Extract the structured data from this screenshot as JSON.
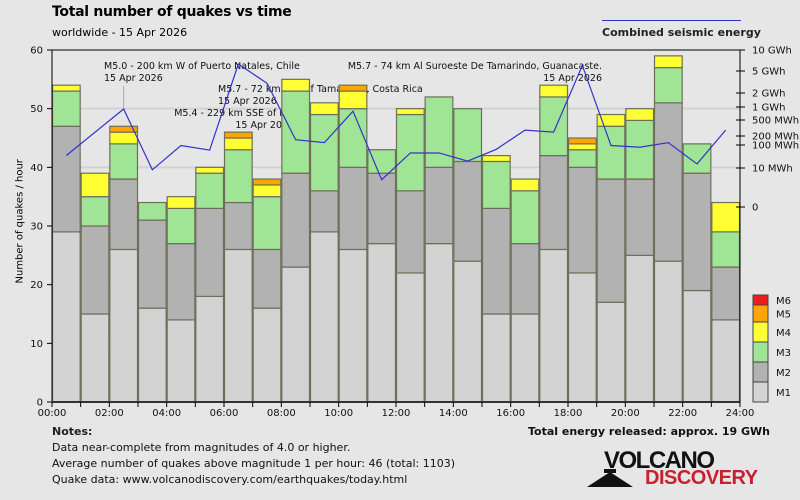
{
  "header": {
    "title": "Total number of quakes vs time",
    "subtitle": "worldwide - 15 Apr 2026",
    "energy_legend_label": "Combined seismic energy"
  },
  "notes": {
    "title": "Notes:",
    "lines": [
      "Data near-complete from magnitudes of 4.0 or higher.",
      "Average number of quakes above magnitude 1 per hour: 46 (total: 1103)",
      "Quake data: www.volcanodiscovery.com/earthquakes/today.html"
    ],
    "energy_total": "Total energy released: approx. 19 GWh"
  },
  "logo": {
    "top": "VOLCANO",
    "bottom": "DISCOVERY"
  },
  "chart_data": {
    "type": "bar",
    "stacked": true,
    "title": "Total number of quakes vs time",
    "subtitle": "worldwide - 15 Apr 2026",
    "xlabel": "",
    "ylabel": "Number of quakes / hour",
    "ylim": [
      0,
      60
    ],
    "yticks": [
      0,
      10,
      20,
      30,
      40,
      50,
      60
    ],
    "grid": true,
    "xticks": [
      "00:00",
      "02:00",
      "04:00",
      "06:00",
      "08:00",
      "10:00",
      "12:00",
      "14:00",
      "16:00",
      "18:00",
      "20:00",
      "22:00",
      "24:00"
    ],
    "categories": [
      "00",
      "01",
      "02",
      "03",
      "04",
      "05",
      "06",
      "07",
      "08",
      "09",
      "10",
      "11",
      "12",
      "13",
      "14",
      "15",
      "16",
      "17",
      "18",
      "19",
      "20",
      "21",
      "22",
      "23"
    ],
    "series": [
      {
        "name": "M1",
        "color": "#d3d3d3",
        "values": [
          29,
          15,
          26,
          16,
          14,
          18,
          26,
          16,
          23,
          29,
          26,
          27,
          22,
          27,
          24,
          15,
          15,
          26,
          22,
          17,
          25,
          24,
          19,
          14
        ]
      },
      {
        "name": "M2",
        "color": "#b2b2b2",
        "values": [
          18,
          15,
          12,
          15,
          13,
          15,
          8,
          10,
          16,
          7,
          14,
          12,
          14,
          13,
          17,
          18,
          12,
          16,
          18,
          21,
          13,
          27,
          20,
          9
        ]
      },
      {
        "name": "M3",
        "color": "#a0e495",
        "values": [
          6,
          5,
          6,
          3,
          6,
          6,
          9,
          9,
          14,
          13,
          10,
          4,
          13,
          12,
          9,
          8,
          9,
          10,
          3,
          9,
          10,
          6,
          5,
          6
        ]
      },
      {
        "name": "M4",
        "color": "#ffff33",
        "values": [
          1,
          4,
          2,
          0,
          2,
          1,
          2,
          2,
          2,
          2,
          3,
          0,
          1,
          0,
          0,
          1,
          2,
          2,
          1,
          2,
          2,
          2,
          0,
          5
        ]
      },
      {
        "name": "M5",
        "color": "#ffa500",
        "values": [
          0,
          0,
          1,
          0,
          0,
          0,
          1,
          1,
          0,
          0,
          1,
          0,
          0,
          0,
          0,
          0,
          0,
          0,
          1,
          0,
          0,
          0,
          0,
          0
        ]
      },
      {
        "name": "M6",
        "color": "#ee1c1c",
        "values": [
          0,
          0,
          0,
          0,
          0,
          0,
          0,
          0,
          0,
          0,
          0,
          0,
          0,
          0,
          0,
          0,
          0,
          0,
          0,
          0,
          0,
          0,
          0,
          0
        ]
      }
    ],
    "legend": {
      "placement": "bottom-right",
      "entries": [
        "M6",
        "M5",
        "M4",
        "M3",
        "M2",
        "M1"
      ]
    },
    "energy_series": {
      "name": "Combined seismic energy",
      "color": "#3333cc",
      "unit": "MWh",
      "values": [
        35,
        null,
        900,
        9,
        95,
        60,
        6300,
        3000,
        150,
        120,
        800,
        5,
        45,
        45,
        20,
        65,
        280,
        250,
        6000,
        95,
        80,
        120,
        15,
        280
      ],
      "axis_ticks": [
        {
          "label": "10 GWh",
          "value": 10000
        },
        {
          "label": "5 GWh",
          "value": 5000
        },
        {
          "label": "2 GWh",
          "value": 2000
        },
        {
          "label": "1 GWh",
          "value": 1000
        },
        {
          "label": "500 MWh",
          "value": 500
        },
        {
          "label": "200 MWh",
          "value": 200
        },
        {
          "label": "100 MWh",
          "value": 100
        },
        {
          "label": "10 MWh",
          "value": 10
        },
        {
          "label": "0",
          "value": 0
        }
      ]
    },
    "annotations": [
      {
        "hour": 2,
        "lines": [
          "M5.0 - 200 km W of Puerto Natales, Chile",
          "15 Apr 2026"
        ],
        "align": "left",
        "leader": true
      },
      {
        "hour": 7,
        "lines": [
          "M5.7 - 72 km SSE of Tamarindo, Costa Rica",
          "15 Apr 2026"
        ],
        "align": "left",
        "leader": false
      },
      {
        "hour": 7,
        "lines": [
          "M5.4 - 229 km SSE of I",
          "15 Apr 20"
        ],
        "align": "right",
        "leader": false
      },
      {
        "hour": 18,
        "lines": [
          "M5.7 - 74 km Al Suroeste De Tamarindo, Guanacaste.",
          "15 Apr 2026"
        ],
        "align": "right",
        "leader": false
      }
    ]
  }
}
